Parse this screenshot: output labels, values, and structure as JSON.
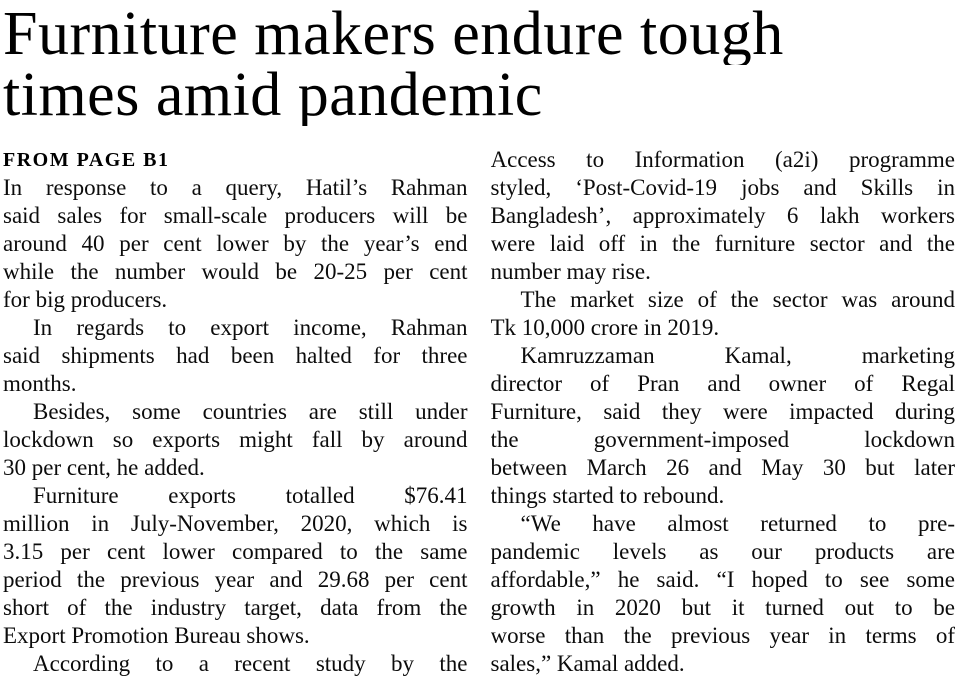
{
  "page": {
    "background_color": "#ffffff",
    "headline_color": "#000000",
    "body_text_color": "#0c0c0c"
  },
  "article": {
    "headline": "Furniture makers endure tough times amid pandemic",
    "headline_lines": [
      "Furniture makers endure tough",
      "times amid pandemic"
    ],
    "kicker": "FROM PAGE B1",
    "columns": [
      {
        "side": "left",
        "paragraphs": [
          {
            "indent": false,
            "continues": false,
            "lines": [
              "In response to a query, Hatil’s Rahman",
              "said sales for small-scale producers will be",
              "around 40 per cent lower by the year’s end",
              "while the number would be 20-25 per cent",
              "for big producers."
            ]
          },
          {
            "indent": true,
            "continues": false,
            "lines": [
              "In regards to export income, Rahman",
              "said shipments had been halted for three",
              "months."
            ]
          },
          {
            "indent": true,
            "continues": false,
            "lines": [
              "Besides, some countries are still under",
              "lockdown so exports might fall by around",
              "30 per cent, he added."
            ]
          },
          {
            "indent": true,
            "continues": false,
            "lines": [
              "Furniture exports totalled $76.41",
              "million in July-November, 2020, which is",
              "3.15 per cent lower compared to the same",
              "period the previous year and 29.68 per cent",
              "short of the industry target, data from the",
              "Export Promotion Bureau shows."
            ]
          },
          {
            "indent": true,
            "continues": true,
            "lines": [
              "According to a recent study by the"
            ]
          }
        ]
      },
      {
        "side": "right",
        "paragraphs": [
          {
            "indent": false,
            "continues": false,
            "lines": [
              "Access to Information (a2i) programme",
              "styled, ‘Post-Covid-19 jobs and Skills in",
              "Bangladesh’, approximately 6 lakh workers",
              "were laid off in the furniture sector and the",
              "number may rise."
            ]
          },
          {
            "indent": true,
            "continues": false,
            "lines": [
              "The market size of the sector was around",
              "Tk 10,000 crore in 2019."
            ]
          },
          {
            "indent": true,
            "continues": false,
            "lines": [
              "Kamruzzaman Kamal, marketing",
              "director of Pran and owner of Regal",
              "Furniture, said they were impacted during",
              "the government-imposed lockdown",
              "between March 26 and May 30 but later",
              "things started to rebound."
            ]
          },
          {
            "indent": true,
            "continues": false,
            "lines": [
              "“We have almost returned to pre-",
              "pandemic levels as our products are",
              "affordable,” he said.  “I hoped to see some",
              "growth in 2020 but it turned out to be",
              "worse than the previous year in terms of",
              "sales,” Kamal added."
            ]
          }
        ]
      }
    ]
  }
}
